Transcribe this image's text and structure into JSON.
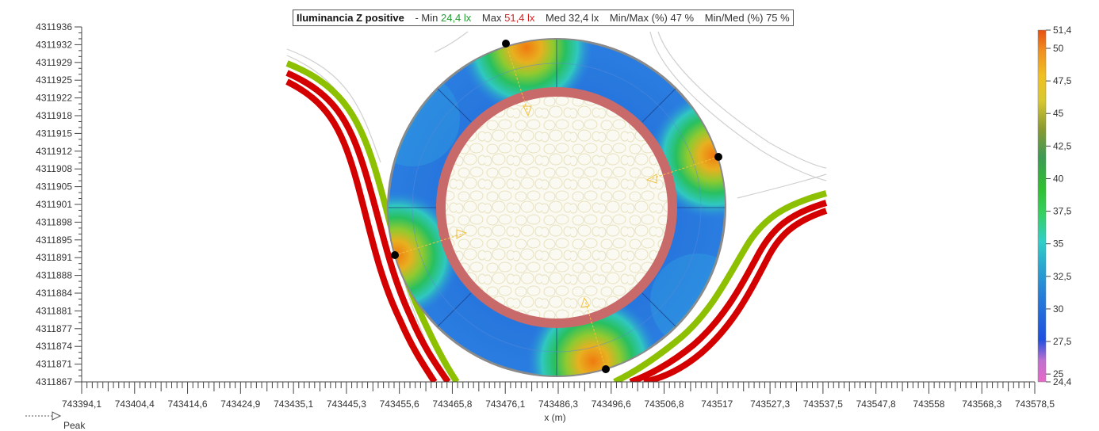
{
  "title": {
    "label": "Iluminancia  Z positive",
    "sep": "-",
    "min_label": "Min",
    "min_value": "24,4 lx",
    "max_label": "Max",
    "max_value": "51,4 lx",
    "med_label": "Med",
    "med_value": "32,4 lx",
    "minmax_label": "Min/Max (%)",
    "minmax_value": "47 %",
    "minmed_label": "Min/Med (%)",
    "minmed_value": "75 %"
  },
  "y_axis": {
    "ticks": [
      "4311936",
      "4311932",
      "4311929",
      "4311925",
      "4311922",
      "4311918",
      "4311915",
      "4311912",
      "4311908",
      "4311905",
      "4311901",
      "4311898",
      "4311895",
      "4311891",
      "4311888",
      "4311884",
      "4311881",
      "4311877",
      "4311874",
      "4311871",
      "4311867"
    ]
  },
  "x_axis": {
    "label": "x (m)",
    "ticks": [
      "743394,1",
      "743404,4",
      "743414,6",
      "743424,9",
      "743435,1",
      "743445,3",
      "743455,6",
      "743465,8",
      "743476,1",
      "743486,3",
      "743496,6",
      "743506,8",
      "743517",
      "743527,3",
      "743537,5",
      "743547,8",
      "743558",
      "743568,3",
      "743578,5"
    ]
  },
  "colorbar": {
    "ticks": [
      "51,4",
      "50",
      "47,5",
      "45",
      "42,5",
      "40",
      "37,5",
      "35",
      "32,5",
      "30",
      "27,5",
      "25",
      "24,4"
    ],
    "gradient": [
      "#e060c0",
      "#2050e0",
      "#2a8ad0",
      "#30c0c0",
      "#40d040",
      "#40a860",
      "#60a030",
      "#c0c030",
      "#f0d020",
      "#f0a020",
      "#e86010"
    ]
  },
  "legend": {
    "peak_label": "Peak"
  },
  "colors": {
    "road_red": "#d40000",
    "road_green": "#8cc000",
    "inner_ring": "#c86a6a",
    "hot": "#e08020",
    "cool": "#1f6fd8"
  }
}
